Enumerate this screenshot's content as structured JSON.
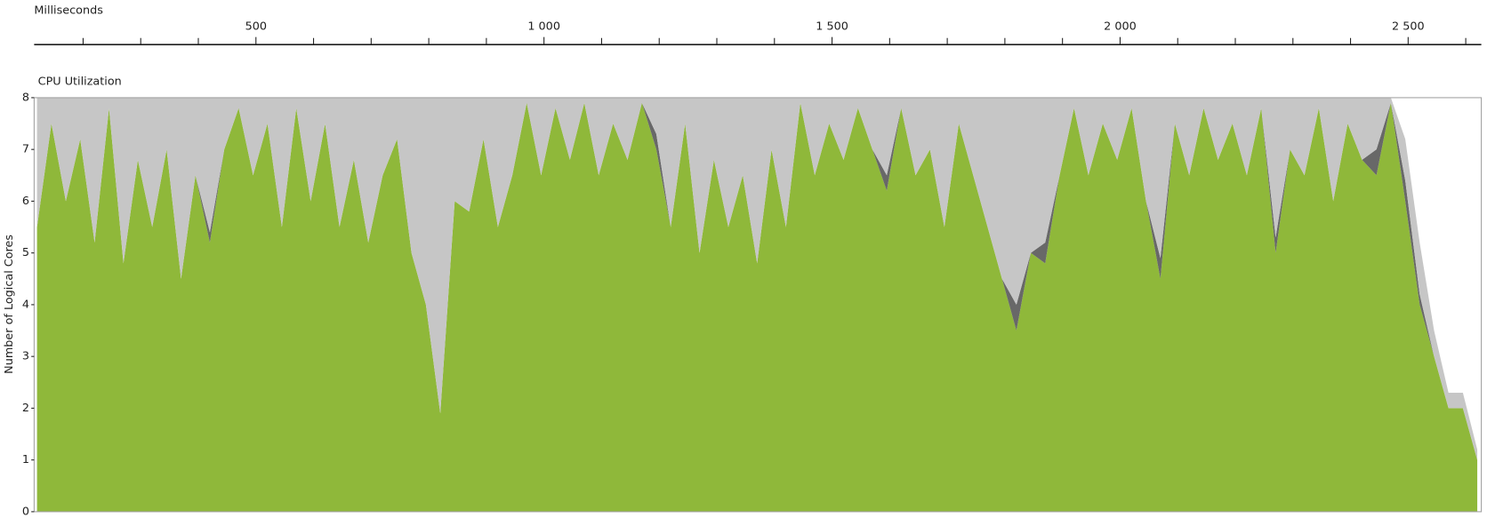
{
  "chart_data": {
    "type": "stacked-area",
    "axis_title_top": "Milliseconds",
    "title": "CPU Utilization",
    "y_label": "Number of Logical Cores",
    "xlim": [
      115,
      2627
    ],
    "xticks": [
      {
        "value": 500,
        "label": "500"
      },
      {
        "value": 1000,
        "label": "1 000"
      },
      {
        "value": 1500,
        "label": "1 500"
      },
      {
        "value": 2000,
        "label": "2 000"
      },
      {
        "value": 2500,
        "label": "2 500"
      }
    ],
    "xminorticks": [
      200,
      300,
      400,
      600,
      700,
      800,
      900,
      1100,
      1200,
      1300,
      1400,
      1600,
      1700,
      1800,
      1900,
      2100,
      2200,
      2300,
      2400,
      2600
    ],
    "ylim": [
      0,
      8
    ],
    "yticks": [
      0,
      1,
      2,
      3,
      4,
      5,
      6,
      7,
      8
    ],
    "x": [
      120,
      145,
      170,
      195,
      220,
      245,
      270,
      295,
      320,
      345,
      370,
      395,
      420,
      445,
      470,
      495,
      520,
      545,
      570,
      595,
      620,
      645,
      670,
      695,
      720,
      745,
      770,
      795,
      820,
      845,
      870,
      895,
      920,
      945,
      970,
      995,
      1020,
      1045,
      1070,
      1095,
      1120,
      1145,
      1170,
      1195,
      1220,
      1245,
      1270,
      1295,
      1320,
      1345,
      1370,
      1395,
      1420,
      1445,
      1470,
      1495,
      1520,
      1545,
      1570,
      1595,
      1620,
      1645,
      1670,
      1695,
      1720,
      1745,
      1770,
      1795,
      1820,
      1845,
      1870,
      1895,
      1920,
      1945,
      1970,
      1995,
      2020,
      2045,
      2070,
      2095,
      2120,
      2145,
      2170,
      2195,
      2220,
      2245,
      2270,
      2295,
      2320,
      2345,
      2370,
      2395,
      2420,
      2445,
      2470,
      2495,
      2520,
      2545,
      2570,
      2595,
      2620
    ],
    "series": [
      {
        "color": "#8fb83a",
        "values": [
          5.5,
          7.5,
          6.0,
          7.2,
          5.2,
          7.8,
          4.8,
          6.8,
          5.5,
          7.0,
          4.5,
          6.5,
          5.2,
          7.0,
          7.8,
          6.5,
          7.5,
          5.5,
          7.8,
          6.0,
          7.5,
          5.5,
          6.8,
          5.2,
          6.5,
          7.2,
          5.0,
          4.0,
          1.9,
          6.0,
          5.8,
          7.2,
          5.5,
          6.5,
          7.9,
          6.5,
          7.8,
          6.8,
          7.9,
          6.5,
          7.5,
          6.8,
          7.9,
          7.0,
          5.5,
          7.5,
          5.0,
          6.8,
          5.5,
          6.5,
          4.8,
          7.0,
          5.5,
          7.9,
          6.5,
          7.5,
          6.8,
          7.8,
          7.0,
          6.2,
          7.8,
          6.5,
          7.0,
          5.5,
          7.5,
          6.5,
          5.5,
          4.5,
          3.5,
          5.0,
          4.8,
          6.5,
          7.8,
          6.5,
          7.5,
          6.8,
          7.8,
          6.0,
          4.5,
          7.5,
          6.5,
          7.8,
          6.8,
          7.5,
          6.5,
          7.8,
          5.0,
          7.0,
          6.5,
          7.8,
          6.0,
          7.5,
          6.8,
          6.5,
          7.9,
          6.0,
          4.0,
          3.0,
          2.0,
          2.0,
          1.0
        ]
      },
      {
        "color": "#686868",
        "values": [
          0,
          0,
          0,
          0,
          0,
          0,
          0,
          0,
          0,
          0,
          0,
          0,
          0.2,
          0,
          0,
          0,
          0,
          0,
          0,
          0,
          0,
          0,
          0,
          0,
          0,
          0,
          0,
          0,
          0,
          0,
          0,
          0,
          0,
          0,
          0,
          0,
          0,
          0,
          0,
          0,
          0,
          0,
          0,
          0.3,
          0,
          0,
          0,
          0,
          0,
          0,
          0,
          0,
          0,
          0,
          0,
          0,
          0,
          0,
          0,
          0.3,
          0,
          0,
          0,
          0,
          0,
          0,
          0,
          0,
          0.5,
          0,
          0.4,
          0,
          0,
          0,
          0,
          0,
          0,
          0,
          0.4,
          0,
          0,
          0,
          0,
          0,
          0,
          0,
          0.3,
          0,
          0,
          0,
          0,
          0,
          0,
          0.5,
          0,
          0.4,
          0.2,
          0,
          0,
          0,
          0
        ]
      },
      {
        "color": "#c6c6c6",
        "values": [
          2.5,
          0.5,
          2.0,
          0.8,
          2.8,
          0.2,
          3.2,
          1.2,
          2.5,
          1.0,
          3.5,
          1.5,
          2.6,
          1.0,
          0.2,
          1.5,
          0.5,
          2.5,
          0.2,
          2.0,
          0.5,
          2.5,
          1.2,
          2.8,
          1.5,
          0.8,
          3.0,
          4.0,
          6.1,
          2.0,
          2.2,
          0.8,
          2.5,
          1.5,
          0.1,
          1.5,
          0.2,
          1.2,
          0.1,
          1.5,
          0.5,
          1.2,
          0.1,
          0.7,
          2.5,
          0.5,
          3.0,
          1.2,
          2.5,
          1.5,
          3.2,
          1.0,
          2.5,
          0.1,
          1.5,
          0.5,
          1.2,
          0.2,
          1.0,
          1.5,
          0.2,
          1.5,
          1.0,
          2.5,
          0.5,
          1.5,
          2.5,
          3.5,
          4.0,
          3.0,
          2.8,
          1.5,
          0.2,
          1.5,
          0.5,
          1.2,
          0.2,
          2.0,
          3.1,
          0.5,
          1.5,
          0.2,
          1.2,
          0.5,
          1.5,
          0.2,
          2.7,
          1.0,
          1.5,
          0.2,
          2.0,
          0.5,
          1.2,
          1.0,
          0.1,
          0.8,
          1.0,
          0.5,
          0.3,
          0.3,
          0.2
        ]
      }
    ]
  }
}
